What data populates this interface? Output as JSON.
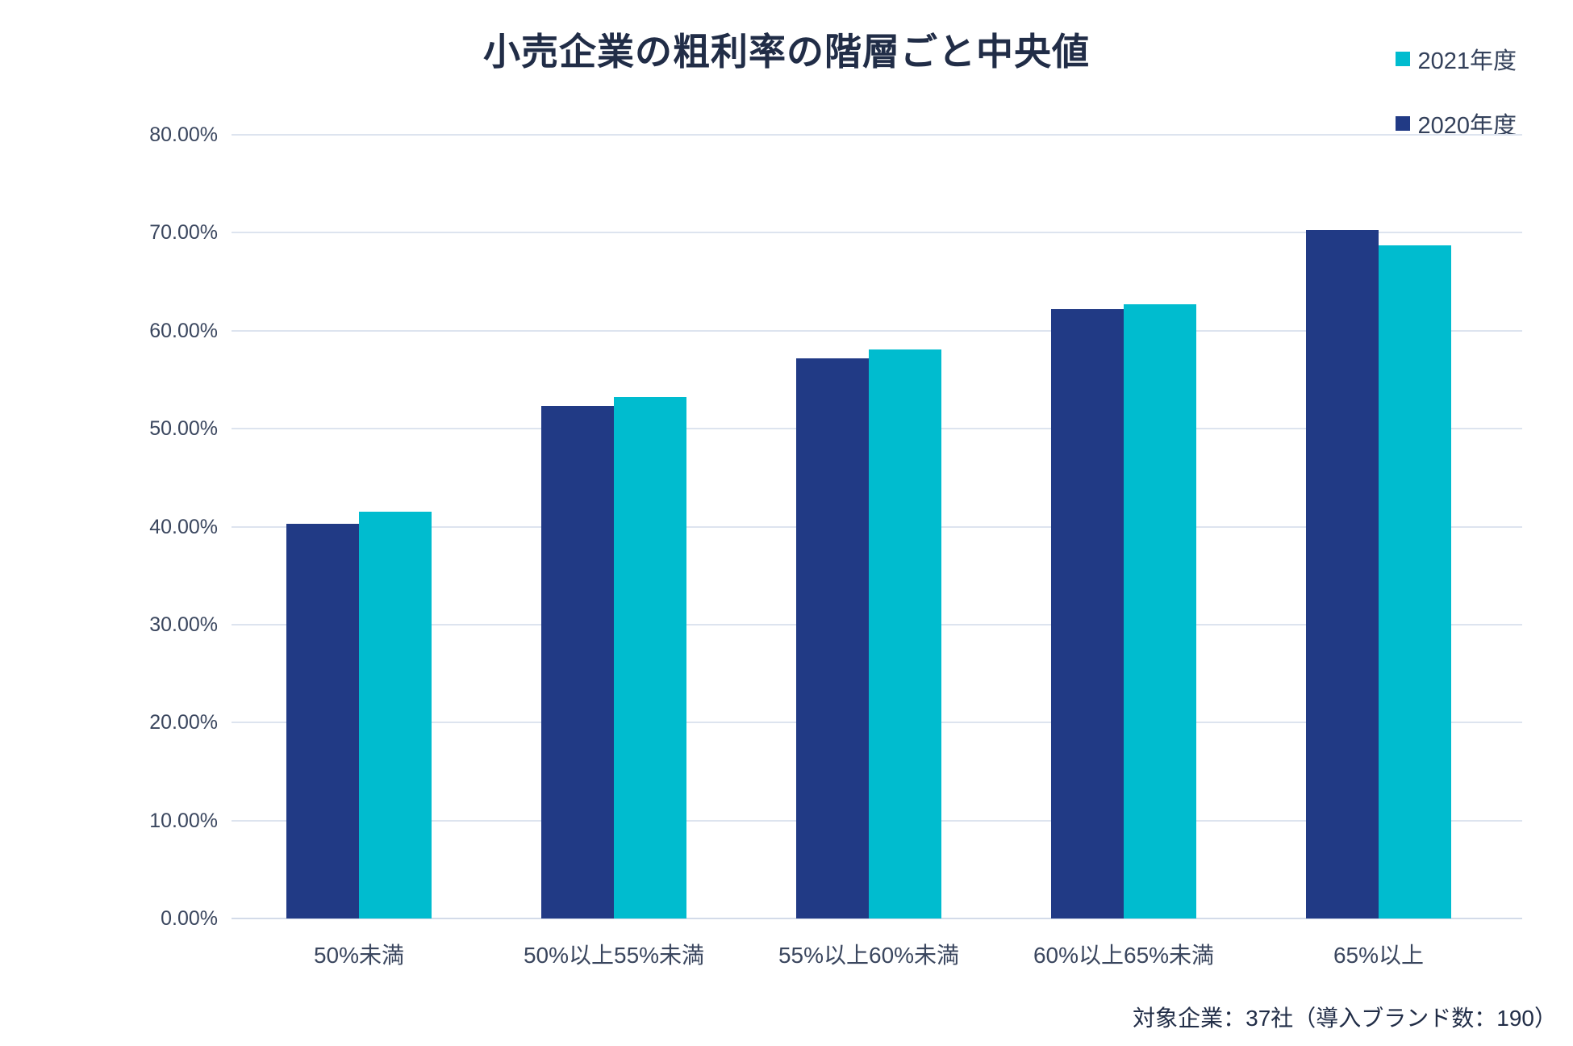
{
  "title": "小売企業の粗利率の階層ごと中央値",
  "legend": [
    {
      "label": "2021年度",
      "color": "#00bccf"
    },
    {
      "label": "2020年度",
      "color": "#213a85"
    }
  ],
  "caption": "対象企業：37社（導入ブランド数：190）",
  "chart_data": {
    "type": "bar",
    "title": "小売企業の粗利率の階層ごと中央値",
    "categories": [
      "50%未満",
      "50%以上55%未満",
      "55%以上60%未満",
      "60%以上65%未満",
      "65%以上"
    ],
    "series": [
      {
        "name": "2020年度",
        "color": "#213a85",
        "values": [
          40.3,
          52.3,
          57.2,
          62.2,
          70.3
        ]
      },
      {
        "name": "2021年度",
        "color": "#00bccf",
        "values": [
          41.5,
          53.2,
          58.1,
          62.7,
          68.7
        ]
      }
    ],
    "xlabel": "",
    "ylabel": "",
    "ylim": [
      0,
      80
    ],
    "ytick_step": 10,
    "ytick_labels": [
      "0.00%",
      "10.00%",
      "20.00%",
      "30.00%",
      "40.00%",
      "50.00%",
      "60.00%",
      "70.00%",
      "80.00%"
    ],
    "grid": true,
    "legend_position": "top-right",
    "bar_order": [
      "2020年度",
      "2021年度"
    ]
  }
}
